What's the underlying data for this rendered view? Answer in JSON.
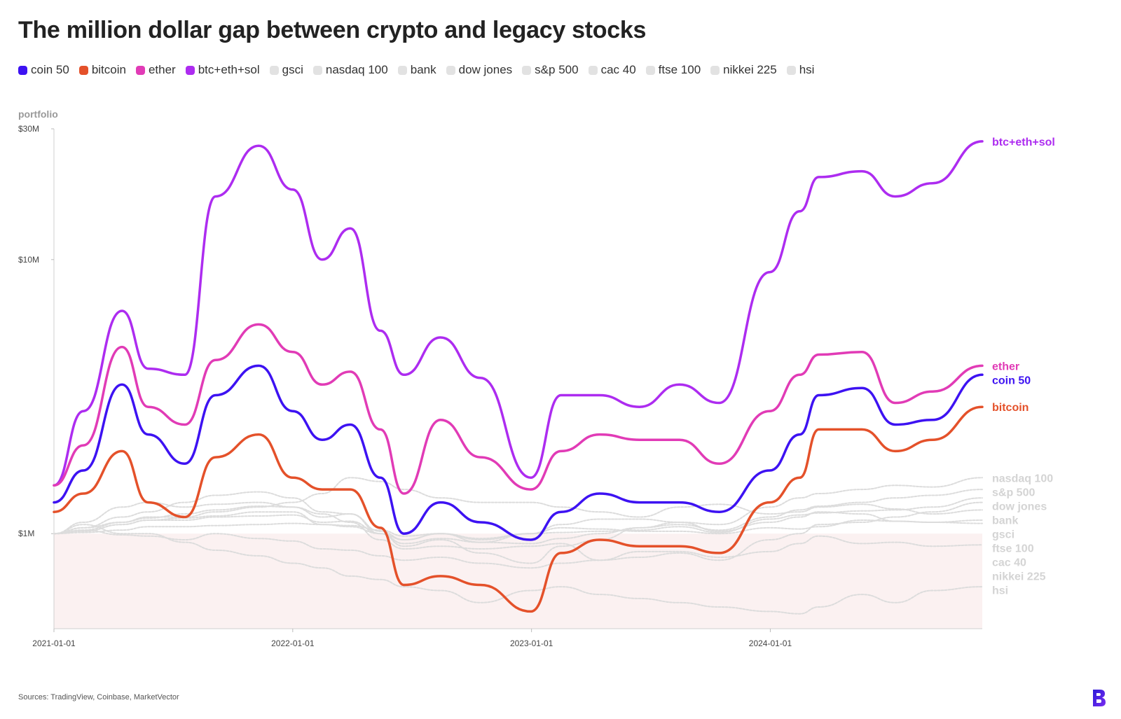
{
  "title": "The million dollar gap between crypto and legacy stocks",
  "ylabel": "portfolio",
  "source": "Sources: TradingView, Coinbase, MarketVector",
  "legend": [
    {
      "label": "coin 50",
      "color": "#3d12f2"
    },
    {
      "label": "bitcoin",
      "color": "#e4512a"
    },
    {
      "label": "ether",
      "color": "#e13bb6"
    },
    {
      "label": "btc+eth+sol",
      "color": "#ad2cf0"
    },
    {
      "label": "gsci",
      "color": "#e2e2e2"
    },
    {
      "label": "nasdaq 100",
      "color": "#e2e2e2"
    },
    {
      "label": "bank",
      "color": "#e2e2e2"
    },
    {
      "label": "dow jones",
      "color": "#e2e2e2"
    },
    {
      "label": "s&p 500",
      "color": "#e2e2e2"
    },
    {
      "label": "cac 40",
      "color": "#e2e2e2"
    },
    {
      "label": "ftse 100",
      "color": "#e2e2e2"
    },
    {
      "label": "nikkei 225",
      "color": "#e2e2e2"
    },
    {
      "label": "hsi",
      "color": "#e2e2e2"
    }
  ],
  "chart_data": {
    "type": "line",
    "title": "The million dollar gap between crypto and legacy stocks",
    "ylabel": "portfolio",
    "xlabel": "",
    "y_scale": "log",
    "ylim": [
      450000,
      30000000
    ],
    "xlim": [
      "2021-01-01",
      "2024-11-20"
    ],
    "x_ticks": [
      "2021-01-01",
      "2022-01-01",
      "2023-01-01",
      "2024-01-01"
    ],
    "y_ticks": [
      {
        "value": 1000000,
        "label": "$1M"
      },
      {
        "value": 10000000,
        "label": "$10M"
      },
      {
        "value": 30000000,
        "label": "$30M"
      }
    ],
    "x": [
      "2021-01-01",
      "2021-02-15",
      "2021-04-15",
      "2021-05-25",
      "2021-07-20",
      "2021-09-05",
      "2021-11-10",
      "2022-01-01",
      "2022-02-15",
      "2022-03-30",
      "2022-05-15",
      "2022-06-20",
      "2022-08-15",
      "2022-10-15",
      "2022-12-31",
      "2023-02-15",
      "2023-04-15",
      "2023-06-15",
      "2023-08-15",
      "2023-10-15",
      "2023-12-31",
      "2024-02-15",
      "2024-03-15",
      "2024-05-20",
      "2024-07-10",
      "2024-09-05",
      "2024-11-20"
    ],
    "series": [
      {
        "name": "btc+eth+sol",
        "color": "#ad2cf0",
        "values": [
          1500000,
          2800000,
          6500000,
          4000000,
          3800000,
          17000000,
          26000000,
          18000000,
          10000000,
          13000000,
          5500000,
          3800000,
          5200000,
          3700000,
          1600000,
          3200000,
          3200000,
          2900000,
          3500000,
          3000000,
          9000000,
          15000000,
          20000000,
          21000000,
          17000000,
          19000000,
          27000000
        ]
      },
      {
        "name": "ether",
        "color": "#e13bb6",
        "values": [
          1500000,
          2100000,
          4800000,
          2900000,
          2500000,
          4300000,
          5800000,
          4600000,
          3500000,
          3900000,
          2400000,
          1400000,
          2600000,
          1900000,
          1450000,
          2000000,
          2300000,
          2200000,
          2200000,
          1800000,
          2800000,
          3800000,
          4500000,
          4600000,
          3000000,
          3300000,
          4100000
        ]
      },
      {
        "name": "coin 50",
        "color": "#3d12f2",
        "values": [
          1300000,
          1700000,
          3500000,
          2300000,
          1800000,
          3200000,
          4100000,
          2800000,
          2200000,
          2500000,
          1600000,
          1000000,
          1300000,
          1100000,
          950000,
          1200000,
          1400000,
          1300000,
          1300000,
          1200000,
          1700000,
          2300000,
          3200000,
          3400000,
          2500000,
          2600000,
          3800000
        ]
      },
      {
        "name": "bitcoin",
        "color": "#e4512a",
        "values": [
          1200000,
          1400000,
          2000000,
          1300000,
          1150000,
          1900000,
          2300000,
          1600000,
          1450000,
          1450000,
          1050000,
          650000,
          700000,
          650000,
          520000,
          850000,
          950000,
          900000,
          900000,
          850000,
          1300000,
          1600000,
          2400000,
          2400000,
          2000000,
          2200000,
          2900000
        ]
      },
      {
        "name": "nasdaq 100",
        "color": "#dcdcdc",
        "values": [
          1000000,
          1050000,
          1150000,
          1200000,
          1300000,
          1380000,
          1420000,
          1350000,
          1200000,
          1180000,
          1000000,
          900000,
          950000,
          850000,
          780000,
          900000,
          950000,
          1050000,
          1100000,
          1080000,
          1250000,
          1350000,
          1400000,
          1450000,
          1500000,
          1480000,
          1600000
        ]
      },
      {
        "name": "s&p 500",
        "color": "#dcdcdc",
        "values": [
          1000000,
          1030000,
          1100000,
          1140000,
          1180000,
          1220000,
          1260000,
          1250000,
          1150000,
          1180000,
          1020000,
          950000,
          1000000,
          930000,
          920000,
          960000,
          1000000,
          1050000,
          1080000,
          1030000,
          1150000,
          1220000,
          1260000,
          1300000,
          1350000,
          1380000,
          1450000
        ]
      },
      {
        "name": "dow jones",
        "color": "#dcdcdc",
        "values": [
          1000000,
          1020000,
          1080000,
          1120000,
          1120000,
          1150000,
          1160000,
          1170000,
          1100000,
          1110000,
          1000000,
          950000,
          1000000,
          960000,
          1000000,
          1010000,
          1020000,
          1030000,
          1060000,
          1010000,
          1130000,
          1170000,
          1190000,
          1210000,
          1220000,
          1250000,
          1350000
        ]
      },
      {
        "name": "bank",
        "color": "#dcdcdc",
        "values": [
          1000000,
          1100000,
          1250000,
          1300000,
          1250000,
          1280000,
          1300000,
          1250000,
          1180000,
          1100000,
          950000,
          880000,
          900000,
          880000,
          900000,
          920000,
          800000,
          820000,
          850000,
          800000,
          950000,
          1000000,
          1080000,
          1100000,
          1150000,
          1200000,
          1300000
        ]
      },
      {
        "name": "gsci",
        "color": "#dcdcdc",
        "values": [
          1000000,
          1050000,
          1100000,
          1150000,
          1150000,
          1200000,
          1250000,
          1300000,
          1400000,
          1600000,
          1550000,
          1450000,
          1350000,
          1300000,
          1300000,
          1250000,
          1200000,
          1150000,
          1250000,
          1280000,
          1180000,
          1200000,
          1250000,
          1280000,
          1230000,
          1180000,
          1220000
        ]
      },
      {
        "name": "ftse 100",
        "color": "#dcdcdc",
        "values": [
          1000000,
          1010000,
          1030000,
          1060000,
          1060000,
          1070000,
          1080000,
          1090000,
          1080000,
          1070000,
          1030000,
          980000,
          1000000,
          950000,
          1000000,
          1050000,
          1040000,
          1020000,
          1020000,
          1000000,
          1050000,
          1040000,
          1060000,
          1120000,
          1110000,
          1100000,
          1120000
        ]
      },
      {
        "name": "cac 40",
        "color": "#dcdcdc",
        "values": [
          1000000,
          1020000,
          1080000,
          1120000,
          1140000,
          1160000,
          1200000,
          1200000,
          1080000,
          1060000,
          1000000,
          920000,
          960000,
          930000,
          1000000,
          1080000,
          1130000,
          1130000,
          1100000,
          1020000,
          1100000,
          1150000,
          1200000,
          1180000,
          1110000,
          1100000,
          1090000
        ]
      },
      {
        "name": "nikkei 225",
        "color": "#dcdcdc",
        "values": [
          1000000,
          1030000,
          990000,
          980000,
          950000,
          1000000,
          960000,
          940000,
          880000,
          870000,
          830000,
          800000,
          820000,
          780000,
          750000,
          780000,
          800000,
          860000,
          860000,
          820000,
          860000,
          920000,
          980000,
          920000,
          930000,
          900000,
          910000
        ]
      },
      {
        "name": "hsi",
        "color": "#dcdcdc",
        "values": [
          1000000,
          1080000,
          1000000,
          1000000,
          930000,
          870000,
          830000,
          780000,
          750000,
          700000,
          680000,
          640000,
          620000,
          560000,
          620000,
          640000,
          600000,
          580000,
          560000,
          540000,
          520000,
          510000,
          540000,
          600000,
          560000,
          620000,
          640000
        ]
      }
    ],
    "end_labels": [
      {
        "label": "btc+eth+sol",
        "series": "btc+eth+sol",
        "color": "#ad2cf0"
      },
      {
        "label": "ether",
        "series": "ether",
        "color": "#e13bb6"
      },
      {
        "label": "coin 50",
        "series": "coin 50",
        "color": "#3d12f2"
      },
      {
        "label": "bitcoin",
        "series": "bitcoin",
        "color": "#e4512a"
      },
      {
        "label": "nasdaq 100",
        "series": "nasdaq 100",
        "color": "#dcdcdc"
      },
      {
        "label": "s&p 500",
        "series": "s&p 500",
        "color": "#dcdcdc"
      },
      {
        "label": "dow jones",
        "series": "dow jones",
        "color": "#dcdcdc"
      },
      {
        "label": "bank",
        "series": "bank",
        "color": "#dcdcdc"
      },
      {
        "label": "gsci",
        "series": "gsci",
        "color": "#dcdcdc"
      },
      {
        "label": "ftse 100",
        "series": "ftse 100",
        "color": "#dcdcdc"
      },
      {
        "label": "cac 40",
        "series": "cac 40",
        "color": "#dcdcdc"
      },
      {
        "label": "nikkei 225",
        "series": "nikkei 225",
        "color": "#dcdcdc"
      },
      {
        "label": "hsi",
        "series": "hsi",
        "color": "#dcdcdc"
      }
    ],
    "shaded_region": {
      "from": 450000,
      "to": 1000000,
      "color": "#fbf1f1"
    },
    "grid": false,
    "legend_position": "top-left"
  }
}
